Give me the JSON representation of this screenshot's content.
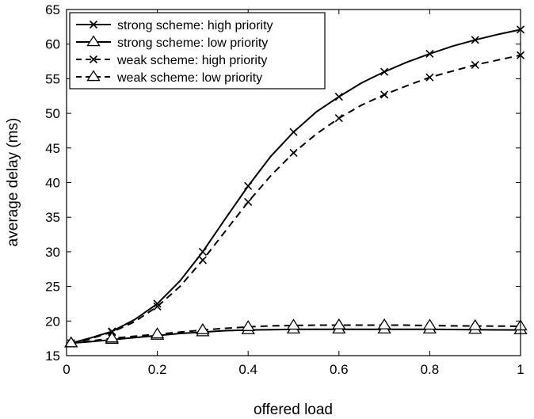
{
  "chart_data": {
    "type": "line",
    "title": "",
    "xlabel": "offered load",
    "ylabel": "average delay (ms)",
    "xlim": [
      0,
      1
    ],
    "ylim": [
      15,
      65
    ],
    "xticks": [
      0,
      0.2,
      0.4,
      0.6,
      0.8,
      1
    ],
    "xtick_labels": [
      "0",
      "0.2",
      "0.4",
      "0.6",
      "0.8",
      "1"
    ],
    "yticks": [
      15,
      20,
      25,
      30,
      35,
      40,
      45,
      50,
      55,
      60,
      65
    ],
    "ytick_labels": [
      "15",
      "20",
      "25",
      "30",
      "35",
      "40",
      "45",
      "50",
      "55",
      "60",
      "65"
    ],
    "grid": false,
    "legend_position": "top-left",
    "series": [
      {
        "name": "strong scheme: high priority",
        "line": "solid",
        "marker": "x",
        "color": "#000000",
        "x": [
          0.01,
          0.05,
          0.1,
          0.15,
          0.2,
          0.25,
          0.3,
          0.35,
          0.4,
          0.45,
          0.5,
          0.55,
          0.6,
          0.65,
          0.7,
          0.75,
          0.8,
          0.85,
          0.9,
          0.95,
          1.0
        ],
        "y": [
          16.8,
          17.5,
          18.5,
          20.2,
          22.5,
          25.8,
          30.0,
          34.8,
          39.5,
          43.8,
          47.3,
          50.2,
          52.4,
          54.4,
          56.0,
          57.4,
          58.6,
          59.7,
          60.6,
          61.4,
          62.1
        ],
        "marker_indices": [
          0,
          2,
          4,
          6,
          8,
          10,
          12,
          14,
          16,
          18,
          20
        ]
      },
      {
        "name": "strong scheme: low priority",
        "line": "solid",
        "marker": "triangle",
        "color": "#000000",
        "x": [
          0.01,
          0.05,
          0.1,
          0.15,
          0.2,
          0.25,
          0.3,
          0.35,
          0.4,
          0.45,
          0.5,
          0.55,
          0.6,
          0.65,
          0.7,
          0.75,
          0.8,
          0.85,
          0.9,
          0.95,
          1.0
        ],
        "y": [
          16.8,
          17.0,
          17.3,
          17.6,
          17.9,
          18.2,
          18.4,
          18.6,
          18.7,
          18.75,
          18.8,
          18.8,
          18.8,
          18.8,
          18.8,
          18.8,
          18.8,
          18.78,
          18.75,
          18.72,
          18.7
        ],
        "marker_indices": [
          0,
          2,
          4,
          6,
          8,
          10,
          12,
          14,
          16,
          18,
          20
        ]
      },
      {
        "name": "weak scheme: high priority",
        "line": "dashed",
        "marker": "x",
        "color": "#000000",
        "x": [
          0.01,
          0.05,
          0.1,
          0.15,
          0.2,
          0.25,
          0.3,
          0.35,
          0.4,
          0.45,
          0.5,
          0.55,
          0.6,
          0.65,
          0.7,
          0.75,
          0.8,
          0.85,
          0.9,
          0.95,
          1.0
        ],
        "y": [
          16.8,
          17.4,
          18.4,
          19.9,
          22.1,
          25.0,
          28.8,
          33.0,
          37.2,
          41.0,
          44.3,
          47.0,
          49.3,
          51.2,
          52.7,
          54.0,
          55.2,
          56.1,
          57.0,
          57.7,
          58.4
        ],
        "marker_indices": [
          0,
          2,
          4,
          6,
          8,
          10,
          12,
          14,
          16,
          18,
          20
        ]
      },
      {
        "name": "weak scheme: low priority",
        "line": "dashed",
        "marker": "triangle",
        "color": "#000000",
        "x": [
          0.01,
          0.05,
          0.1,
          0.15,
          0.2,
          0.25,
          0.3,
          0.35,
          0.4,
          0.45,
          0.5,
          0.55,
          0.6,
          0.65,
          0.7,
          0.75,
          0.8,
          0.85,
          0.9,
          0.95,
          1.0
        ],
        "y": [
          16.8,
          17.1,
          17.5,
          17.8,
          18.1,
          18.4,
          18.7,
          18.95,
          19.15,
          19.3,
          19.35,
          19.4,
          19.4,
          19.4,
          19.4,
          19.4,
          19.35,
          19.3,
          19.28,
          19.26,
          19.25
        ],
        "marker_indices": [
          0,
          2,
          4,
          6,
          8,
          10,
          12,
          14,
          16,
          18,
          20
        ]
      }
    ]
  }
}
